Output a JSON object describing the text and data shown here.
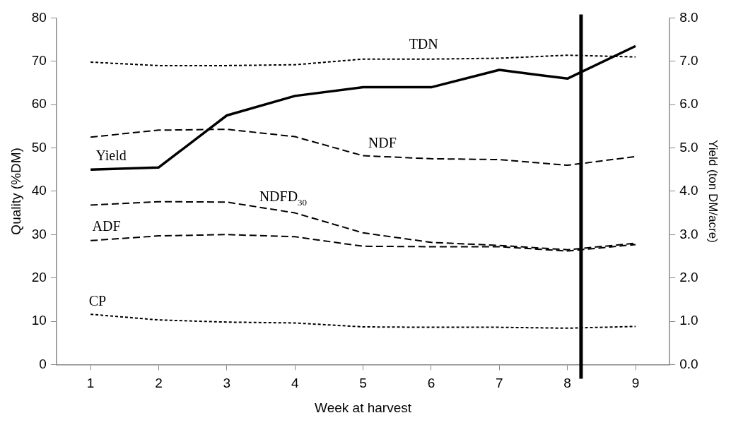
{
  "chart_data": {
    "type": "line",
    "xlabel": "Week at harvest",
    "ylabel": "Quality (%DM)",
    "y2label": "Yield (ton DM/acre)",
    "x": [
      1,
      2,
      3,
      4,
      5,
      6,
      7,
      8,
      9
    ],
    "xlim": [
      0.5,
      9.5
    ],
    "xticks": [
      1,
      2,
      3,
      4,
      5,
      6,
      7,
      8,
      9
    ],
    "ylim": [
      0,
      80
    ],
    "yticks": [
      0,
      10,
      20,
      30,
      40,
      50,
      60,
      70,
      80
    ],
    "y2lim": [
      0,
      8
    ],
    "y2ticks": [
      {
        "value": 0,
        "label": "0.0"
      },
      {
        "value": 1,
        "label": "1.0"
      },
      {
        "value": 2,
        "label": "2.0"
      },
      {
        "value": 3,
        "label": "3.0"
      },
      {
        "value": 4,
        "label": "4.0"
      },
      {
        "value": 5,
        "label": "5.0"
      },
      {
        "value": 6,
        "label": "6.0"
      },
      {
        "value": 7,
        "label": "7.0"
      },
      {
        "value": 8,
        "label": "8.0"
      }
    ],
    "series": [
      {
        "name": "TDN",
        "color": "#000000",
        "line_style": "dotted",
        "values": [
          69.8,
          69,
          69,
          69.2,
          70.5,
          70.5,
          70.7,
          71.4,
          71
        ]
      },
      {
        "name": "NDF",
        "color": "#000000",
        "line_style": "dashed",
        "values": [
          52.5,
          54.1,
          54.3,
          52.6,
          48.2,
          47.5,
          47.3,
          46,
          48
        ]
      },
      {
        "name": "NDFD$_{30}$",
        "color": "#000000",
        "line_style": "dashed",
        "values": [
          36.8,
          37.6,
          37.5,
          35,
          30.4,
          28.2,
          27.5,
          26.5,
          28
        ]
      },
      {
        "name": "ADF",
        "color": "#000000",
        "line_style": "dashed",
        "values": [
          28.6,
          29.7,
          30,
          29.5,
          27.3,
          27.2,
          27.2,
          26.2,
          27.7
        ]
      },
      {
        "name": "CP",
        "color": "#000000",
        "line_style": "dotted",
        "values": [
          11.6,
          10.3,
          9.8,
          9.6,
          8.7,
          8.6,
          8.6,
          8.4,
          8.8
        ]
      },
      {
        "name": "Yield",
        "color": "#000000",
        "line_style": "solid",
        "axis": "y2",
        "values": [
          4.5,
          4.55,
          5.75,
          6.2,
          6.4,
          6.4,
          6.8,
          6.6,
          7.35
        ]
      }
    ],
    "ref_lines": [
      {
        "axis": "x",
        "value": 8.2,
        "color": "#000000",
        "line_style": "solid"
      }
    ],
    "grid": false,
    "legend": false,
    "marker": "none"
  }
}
